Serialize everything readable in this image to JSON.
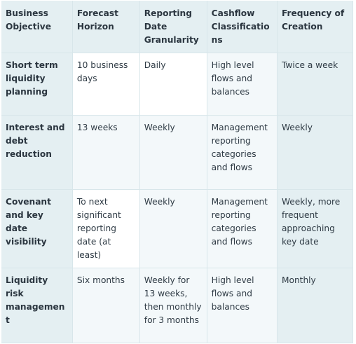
{
  "headers": [
    "Business Objective",
    "Forecast Horizon",
    "Reporting Date Granularity",
    "Cashflow Classifications",
    "Frequency of Creation"
  ],
  "rows": [
    [
      "Short term liquidity planning",
      "10 business days",
      "Daily",
      "High level flows and balances",
      "Twice a week"
    ],
    [
      "Interest and debt reduction",
      "13 weeks",
      "Weekly",
      "Management reporting categories and flows",
      "Weekly"
    ],
    [
      "Covenant and key date visibility",
      "To next significant reporting date (at least)",
      "Weekly",
      "Management reporting categories and flows",
      "Weekly, more frequent approaching key date"
    ],
    [
      "Liquidity risk management",
      "Six months",
      "Weekly for 13 weeks, then monthly for 3 months",
      "High level flows and balances",
      "Monthly"
    ]
  ]
}
